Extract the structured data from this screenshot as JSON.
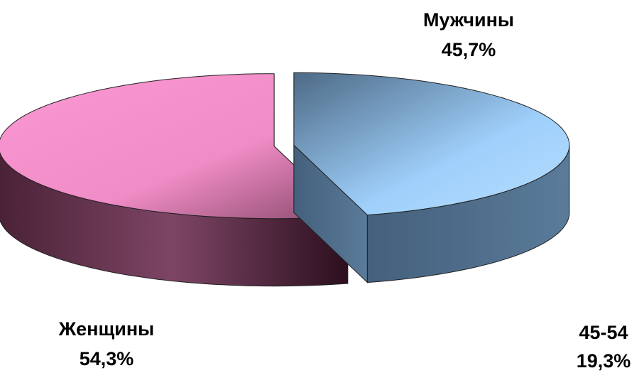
{
  "chart_data": {
    "type": "pie3d",
    "categories": [
      "Мужчины",
      "Женщины"
    ],
    "values": [
      45.7,
      54.3
    ],
    "value_labels": [
      "45,7%",
      "54,3%"
    ],
    "colors": [
      "#9fd0fb",
      "#fb97d2"
    ],
    "annotations": [
      "45-54",
      "19,3%"
    ]
  }
}
